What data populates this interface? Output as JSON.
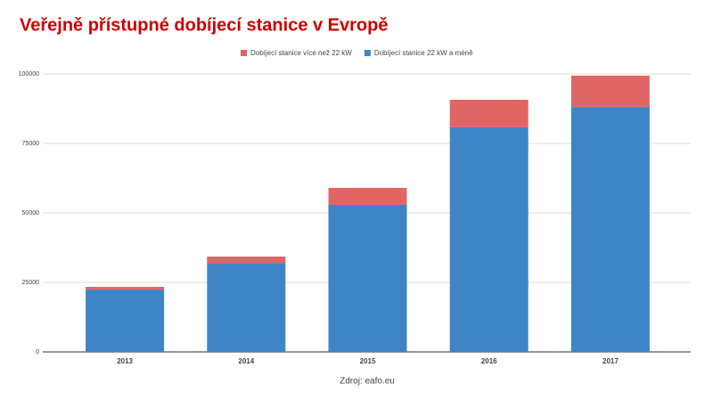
{
  "chart_data": {
    "type": "stacked_bar",
    "title": "Veřejně přístupné dobíjecí stanice v Evropě",
    "categories": [
      "2013",
      "2014",
      "2015",
      "2016",
      "2017"
    ],
    "series": [
      {
        "name": "Dobíjecí stanice více než 22 kW",
        "color": "#e06666",
        "values": [
          1000,
          2300,
          6100,
          9900,
          11300
        ]
      },
      {
        "name": "Dobíjecí stanice 22 kW a méně",
        "color": "#3d85c6",
        "values": [
          22400,
          32000,
          52900,
          80800,
          88100
        ]
      }
    ],
    "ylim": [
      0,
      100000
    ],
    "yticks": [
      0,
      25000,
      50000,
      75000,
      100000
    ],
    "grid": true,
    "legend": "top",
    "source": "Zdroj: eafo.eu"
  }
}
